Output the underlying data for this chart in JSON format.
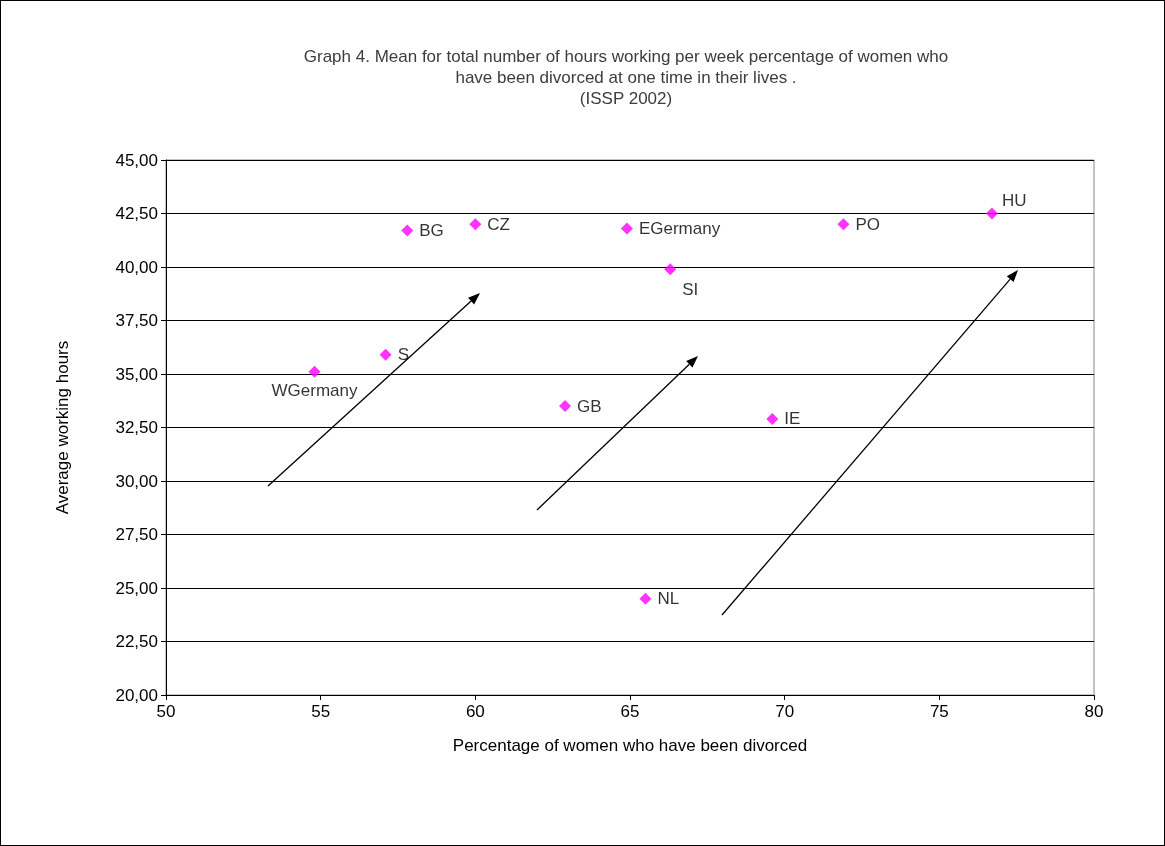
{
  "chart_data": {
    "type": "scatter",
    "title": "Graph 4. Mean for total number of hours working per week percentage of women who\nhave been divorced at one time in their lives .\n(ISSP 2002)",
    "xlabel": "Percentage of women who have been divorced",
    "ylabel": "Average working hours",
    "x": [
      54.8,
      57.1,
      57.8,
      60.0,
      64.9,
      66.3,
      62.9,
      69.6,
      65.5,
      71.9,
      76.7
    ],
    "series": [
      {
        "color": "#ff00ff",
        "values": [
          35.1,
          35.9,
          41.7,
          42.0,
          41.8,
          39.9,
          33.5,
          32.9,
          24.5,
          42.0,
          42.5
        ]
      }
    ],
    "annotations": [
      {
        "text": "WGermany",
        "x": 54.8,
        "y": 35.1
      },
      {
        "text": "S",
        "x": 57.1,
        "y": 35.9
      },
      {
        "text": "BG",
        "x": 57.8,
        "y": 41.7
      },
      {
        "text": "CZ",
        "x": 60.0,
        "y": 42.0
      },
      {
        "text": "EGermany",
        "x": 64.9,
        "y": 41.8
      },
      {
        "text": "SI",
        "x": 66.3,
        "y": 39.9
      },
      {
        "text": "GB",
        "x": 62.9,
        "y": 33.5
      },
      {
        "text": "IE",
        "x": 69.6,
        "y": 32.9
      },
      {
        "text": "NL",
        "x": 65.5,
        "y": 24.5
      },
      {
        "text": "PO",
        "x": 71.9,
        "y": 42.0
      },
      {
        "text": "HU",
        "x": 76.7,
        "y": 42.5
      }
    ],
    "xlim": [
      50,
      80
    ],
    "xticks": [
      50,
      55,
      60,
      65,
      70,
      75,
      80
    ],
    "ylim": [
      20,
      45
    ],
    "yticks": [
      {
        "value": 20,
        "label": "20,00"
      },
      {
        "value": 22.5,
        "label": "22,50"
      },
      {
        "value": 25,
        "label": "25,00"
      },
      {
        "value": 27.5,
        "label": "27,50"
      },
      {
        "value": 30,
        "label": "30,00"
      },
      {
        "value": 32.5,
        "label": "32,50"
      },
      {
        "value": 35,
        "label": "35,00"
      },
      {
        "value": 37.5,
        "label": "37,50"
      },
      {
        "value": 40,
        "label": "40,00"
      },
      {
        "value": 42.5,
        "label": "42,50"
      },
      {
        "value": 45,
        "label": "45,00"
      }
    ],
    "grid": "y",
    "marker": "diamond"
  }
}
